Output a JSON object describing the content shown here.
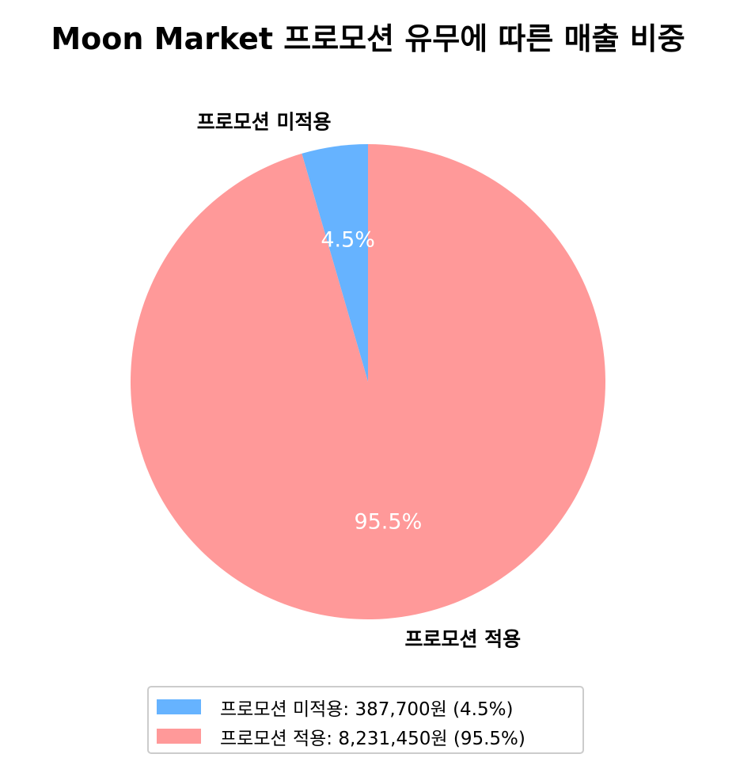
{
  "chart_data": {
    "type": "pie",
    "title": "Moon Market 프로모션 유무에 따른 매출 비중",
    "slices": [
      {
        "label": "프로모션 미적용",
        "value": 387700,
        "percent_label": "4.5%",
        "legend_text": "프로모션 미적용: 387,700원 (4.5%)",
        "color": "#66b3ff"
      },
      {
        "label": "프로모션 적용",
        "value": 8231450,
        "percent_label": "95.5%",
        "legend_text": "프로모션 적용: 8,231,450원 (95.5%)",
        "color": "#ff9999"
      }
    ],
    "start_angle": "top",
    "direction": "counterclockwise",
    "legend_position": "bottom-center"
  }
}
